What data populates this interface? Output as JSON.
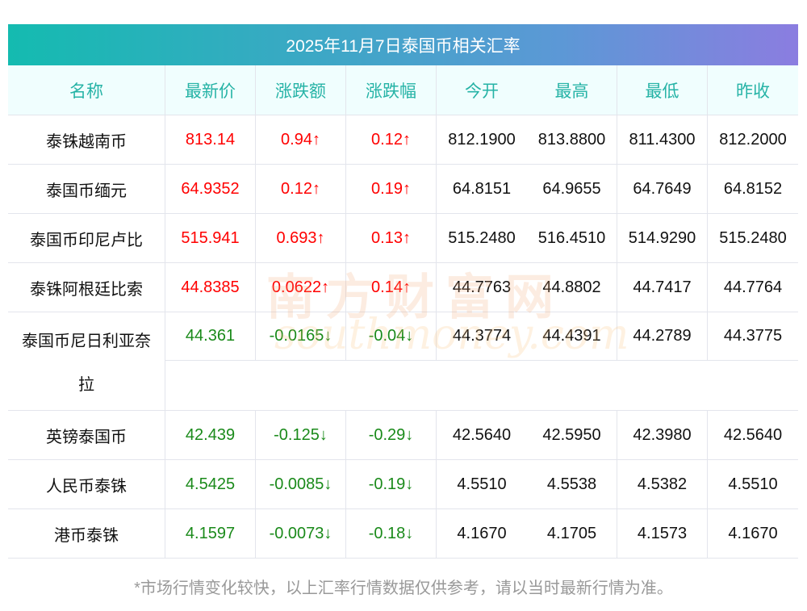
{
  "title": "2025年11月7日泰国币相关汇率",
  "headers": [
    "名称",
    "最新价",
    "涨跌额",
    "涨跌幅",
    "今开",
    "最高",
    "最低",
    "昨收"
  ],
  "rows": [
    {
      "name": "泰铢越南币",
      "price": "813.14",
      "chg": "0.94↑",
      "pct": "0.12↑",
      "open": "812.1900",
      "high": "813.8800",
      "low": "811.4300",
      "prev": "812.2000",
      "dir": "up"
    },
    {
      "name": "泰国币缅元",
      "price": "64.9352",
      "chg": "0.12↑",
      "pct": "0.19↑",
      "open": "64.8151",
      "high": "64.9655",
      "low": "64.7649",
      "prev": "64.8152",
      "dir": "up"
    },
    {
      "name": "泰国币印尼卢比",
      "price": "515.941",
      "chg": "0.693↑",
      "pct": "0.13↑",
      "open": "515.2480",
      "high": "516.4510",
      "low": "514.9290",
      "prev": "515.2480",
      "dir": "up"
    },
    {
      "name": "泰铢阿根廷比索",
      "price": "44.8385",
      "chg": "0.0622↑",
      "pct": "0.14↑",
      "open": "44.7763",
      "high": "44.8802",
      "low": "44.7417",
      "prev": "44.7764",
      "dir": "up"
    },
    {
      "name": "泰国币尼日利亚奈",
      "name2": "拉",
      "price": "44.361",
      "chg": "-0.0165↓",
      "pct": "-0.04↓",
      "open": "44.3774",
      "high": "44.4391",
      "low": "44.2789",
      "prev": "44.3775",
      "dir": "down"
    },
    {
      "name": "英镑泰国币",
      "price": "42.439",
      "chg": "-0.125↓",
      "pct": "-0.29↓",
      "open": "42.5640",
      "high": "42.5950",
      "low": "42.3980",
      "prev": "42.5640",
      "dir": "down"
    },
    {
      "name": "人民币泰铢",
      "price": "4.5425",
      "chg": "-0.0085↓",
      "pct": "-0.19↓",
      "open": "4.5510",
      "high": "4.5538",
      "low": "4.5382",
      "prev": "4.5510",
      "dir": "down"
    },
    {
      "name": "港币泰铢",
      "price": "4.1597",
      "chg": "-0.0073↓",
      "pct": "-0.18↓",
      "open": "4.1670",
      "high": "4.1705",
      "low": "4.1573",
      "prev": "4.1670",
      "dir": "down"
    }
  ],
  "note": "*市场行情变化较快，以上汇率行情数据仅供参考，请以当时最新行情为准。",
  "watermark": {
    "cn": "南方财富网",
    "en": "southmoney.com"
  },
  "colors": {
    "up": "#ff0000",
    "down": "#1a8a1a",
    "header_text": "#26b3a6"
  }
}
